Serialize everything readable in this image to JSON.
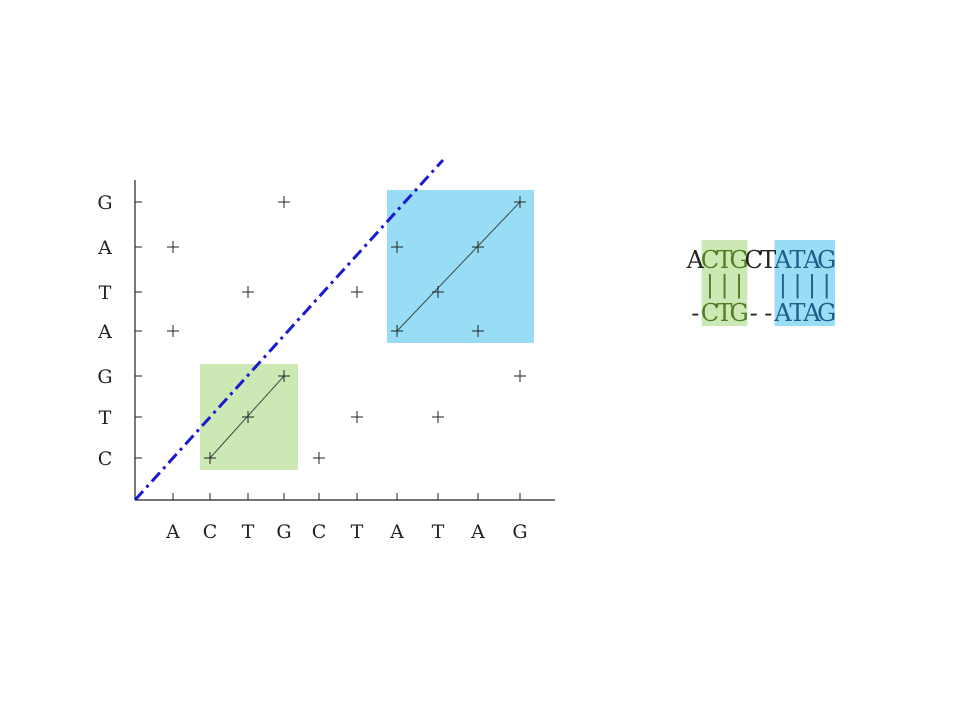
{
  "dotplot": {
    "x_sequence": [
      "A",
      "C",
      "T",
      "G",
      "C",
      "T",
      "A",
      "T",
      "A",
      "G"
    ],
    "y_sequence": [
      "C",
      "T",
      "G",
      "A",
      "T",
      "A",
      "G"
    ],
    "matches": [
      [
        1,
        4
      ],
      [
        1,
        6
      ],
      [
        2,
        1
      ],
      [
        3,
        2
      ],
      [
        3,
        5
      ],
      [
        4,
        3
      ],
      [
        4,
        7
      ],
      [
        5,
        1
      ],
      [
        6,
        2
      ],
      [
        6,
        5
      ],
      [
        7,
        4
      ],
      [
        7,
        6
      ],
      [
        8,
        2
      ],
      [
        8,
        5
      ],
      [
        9,
        4
      ],
      [
        9,
        6
      ],
      [
        10,
        3
      ],
      [
        10,
        7
      ]
    ],
    "diagonal_segments": [
      {
        "from": [
          2,
          1
        ],
        "to": [
          4,
          3
        ]
      },
      {
        "from": [
          7,
          4
        ],
        "to": [
          10,
          7
        ]
      }
    ],
    "highlight_boxes": [
      {
        "x_range": [
          2,
          4
        ],
        "y_range": [
          1,
          3
        ],
        "color": "#cce8b5"
      },
      {
        "x_range": [
          7,
          10
        ],
        "y_range": [
          4,
          7
        ],
        "color": "#99dcf5"
      }
    ],
    "dashdot_line": {
      "from": [
        0,
        0
      ],
      "to": [
        8,
        8
      ],
      "color": "#1a1ad0"
    }
  },
  "alignment": {
    "top": [
      {
        "text": "A",
        "hl": ""
      },
      {
        "text": "CTG",
        "hl": "green"
      },
      {
        "text": "CT",
        "hl": ""
      },
      {
        "text": "ATAG",
        "hl": "blue"
      }
    ],
    "mid": [
      {
        "text": " ",
        "hl": ""
      },
      {
        "text": "|||",
        "hl": "green"
      },
      {
        "text": "  ",
        "hl": ""
      },
      {
        "text": "||||",
        "hl": "blue"
      }
    ],
    "bottom": [
      {
        "text": "-",
        "hl": ""
      },
      {
        "text": "CTG",
        "hl": "green"
      },
      {
        "text": "--",
        "hl": ""
      },
      {
        "text": "ATAG",
        "hl": "blue"
      }
    ]
  },
  "colors": {
    "green_box": "#cce8b5",
    "blue_box": "#99dcf5",
    "green_text": "#4e7d22",
    "blue_text": "#1d5f86",
    "plain_text": "#222222",
    "dashdot": "#1a1ad0"
  }
}
